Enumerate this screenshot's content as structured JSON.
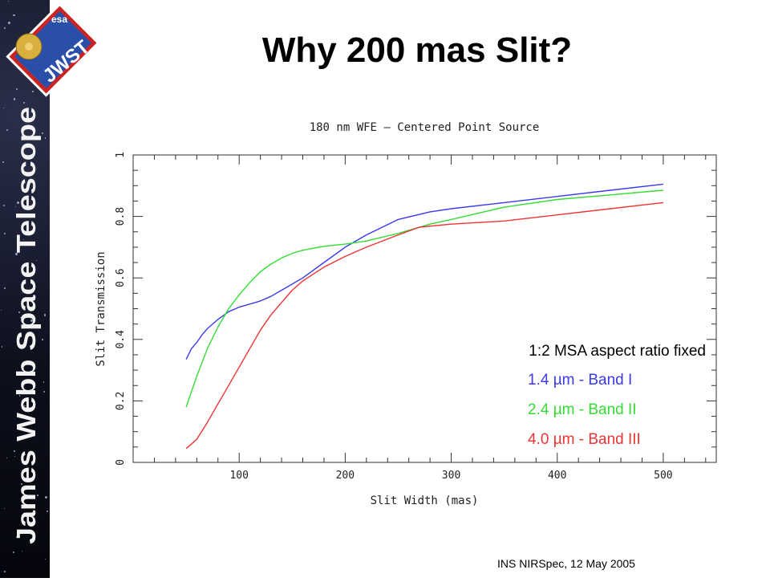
{
  "slide": {
    "title": "Why 200 mas Slit?",
    "footer": "INS NIRSpec, 12 May 2005",
    "sidebar_text": "James Webb Space Telescope",
    "logo_text": "JWST",
    "logo_sub": "esa"
  },
  "chart_data": {
    "type": "line",
    "title": "180 nm WFE – Centered Point Source",
    "xlabel": "Slit Width (mas)",
    "ylabel": "Slit Transmission",
    "xlim": [
      0,
      550
    ],
    "ylim": [
      0,
      1
    ],
    "xticks": [
      100,
      200,
      300,
      400,
      500
    ],
    "yticks": [
      0,
      0.2,
      0.4,
      0.6,
      0.8,
      1
    ],
    "grid": false,
    "annotation": "1:2 MSA aspect ratio fixed",
    "series": [
      {
        "name": "1.4 µm - Band I",
        "color": "#3a3aee",
        "x": [
          50,
          55,
          60,
          65,
          70,
          80,
          90,
          100,
          110,
          120,
          130,
          140,
          150,
          160,
          170,
          180,
          200,
          220,
          250,
          280,
          300,
          350,
          400,
          450,
          500
        ],
        "y": [
          0.335,
          0.37,
          0.39,
          0.415,
          0.435,
          0.465,
          0.49,
          0.505,
          0.515,
          0.525,
          0.54,
          0.56,
          0.58,
          0.6,
          0.625,
          0.65,
          0.7,
          0.74,
          0.79,
          0.815,
          0.825,
          0.845,
          0.865,
          0.885,
          0.905
        ]
      },
      {
        "name": "2.4 µm - Band II",
        "color": "#33dd33",
        "x": [
          50,
          60,
          70,
          80,
          90,
          100,
          110,
          120,
          130,
          140,
          150,
          160,
          180,
          200,
          220,
          250,
          280,
          300,
          350,
          400,
          450,
          500
        ],
        "y": [
          0.18,
          0.28,
          0.37,
          0.44,
          0.5,
          0.545,
          0.585,
          0.62,
          0.645,
          0.665,
          0.68,
          0.69,
          0.703,
          0.71,
          0.72,
          0.745,
          0.775,
          0.79,
          0.83,
          0.855,
          0.87,
          0.885
        ]
      },
      {
        "name": "4.0 µm - Band III",
        "color": "#ee3333",
        "x": [
          50,
          60,
          70,
          80,
          90,
          100,
          110,
          120,
          130,
          140,
          150,
          160,
          180,
          200,
          220,
          250,
          270,
          300,
          350,
          400,
          450,
          500
        ],
        "y": [
          0.045,
          0.075,
          0.13,
          0.19,
          0.25,
          0.31,
          0.37,
          0.43,
          0.48,
          0.52,
          0.56,
          0.59,
          0.635,
          0.67,
          0.7,
          0.74,
          0.765,
          0.775,
          0.785,
          0.805,
          0.825,
          0.845
        ]
      }
    ]
  }
}
